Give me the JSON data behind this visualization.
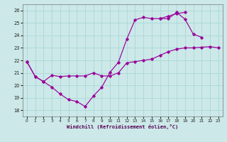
{
  "background_color": "#cce8e8",
  "grid_color": "#aad8d8",
  "line_color": "#990099",
  "xlabel": "Windchill (Refroidissement éolien,°C)",
  "xlim": [
    -0.5,
    23.5
  ],
  "ylim": [
    17.5,
    26.5
  ],
  "xticks": [
    0,
    1,
    2,
    3,
    4,
    5,
    6,
    7,
    8,
    9,
    10,
    11,
    12,
    13,
    14,
    15,
    16,
    17,
    18,
    19,
    20,
    21,
    22,
    23
  ],
  "yticks": [
    18,
    19,
    20,
    21,
    22,
    23,
    24,
    25,
    26
  ],
  "series": [
    {
      "x": [
        0,
        1,
        2,
        3,
        4,
        5,
        6,
        7,
        8,
        9,
        10,
        11,
        12,
        13,
        14,
        15,
        16,
        17,
        18,
        19,
        20,
        21,
        22,
        23
      ],
      "y": [
        21.9,
        20.7,
        20.3,
        20.8,
        20.7,
        20.75,
        20.75,
        20.75,
        21.0,
        20.75,
        20.75,
        21.0,
        21.8,
        21.9,
        22.0,
        22.1,
        22.4,
        22.7,
        22.9,
        23.0,
        23.0,
        23.05,
        23.1,
        23.0
      ]
    },
    {
      "x": [
        0,
        1,
        2,
        3,
        4,
        5,
        6,
        7,
        8,
        9,
        10,
        11,
        12,
        13,
        14,
        15,
        16,
        17,
        18,
        19,
        20,
        21
      ],
      "y": [
        21.9,
        20.7,
        20.3,
        19.85,
        19.3,
        18.85,
        18.7,
        18.3,
        19.15,
        19.85,
        21.05,
        21.85,
        23.7,
        25.25,
        25.45,
        25.35,
        25.35,
        25.35,
        25.85,
        25.3,
        24.1,
        23.85
      ]
    },
    {
      "x": [
        16,
        17,
        18,
        19
      ],
      "y": [
        25.35,
        25.55,
        25.75,
        25.85
      ]
    }
  ]
}
